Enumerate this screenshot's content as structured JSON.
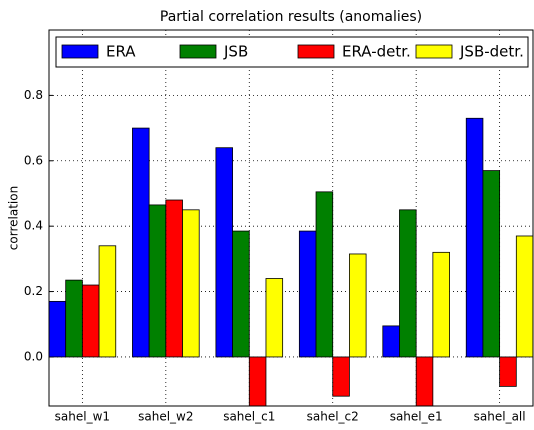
{
  "chart_data": {
    "type": "bar",
    "title": "Partial correlation results (anomalies)",
    "y_label": "correlation",
    "categories": [
      "sahel_w1",
      "sahel_w2",
      "sahel_c1",
      "sahel_c2",
      "sahel_e1",
      "sahel_all"
    ],
    "series": [
      {
        "name": "ERA",
        "color": "#0000ff",
        "values": [
          0.17,
          0.7,
          0.64,
          0.385,
          0.095,
          0.73
        ]
      },
      {
        "name": "JSB",
        "color": "#008000",
        "values": [
          0.235,
          0.465,
          0.385,
          0.505,
          0.45,
          0.57
        ]
      },
      {
        "name": "ERA-detr.",
        "color": "#ff0000",
        "values": [
          0.22,
          0.48,
          -0.17,
          -0.12,
          -0.17,
          -0.09
        ]
      },
      {
        "name": "JSB-detr.",
        "color": "#ffff00",
        "values": [
          0.34,
          0.45,
          0.24,
          0.315,
          0.32,
          0.37
        ]
      }
    ],
    "ylim": [
      -0.15,
      1.0
    ],
    "yticks": [
      {
        "value": 0,
        "label": "0.0"
      },
      {
        "value": 0.2,
        "label": "0.2"
      },
      {
        "value": 0.4,
        "label": "0.4"
      },
      {
        "value": 0.6,
        "label": "0.6"
      },
      {
        "value": 0.8,
        "label": "0.8"
      }
    ],
    "grid": true,
    "legend": "top"
  }
}
